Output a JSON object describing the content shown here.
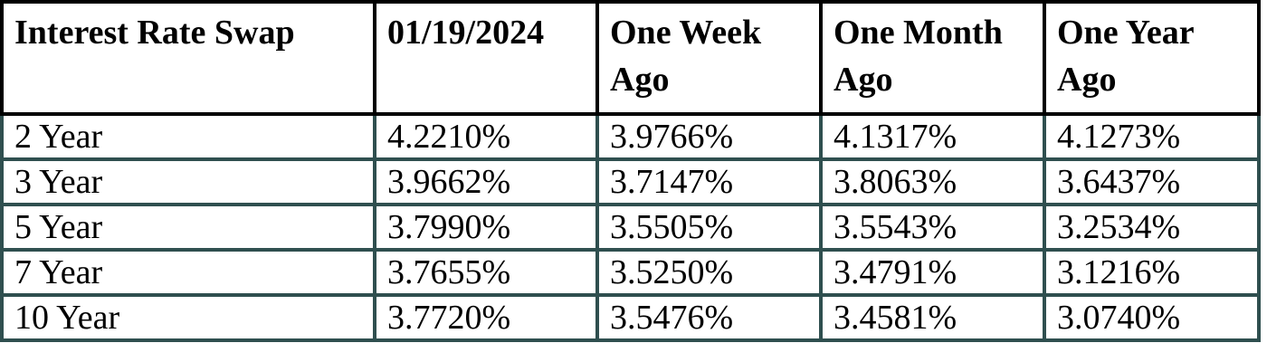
{
  "page": {
    "background": "#ffffff",
    "text_color": "#000000"
  },
  "table": {
    "columns": [
      "Interest Rate Swap",
      "01/19/2024",
      "One Week Ago",
      "One Month Ago",
      "One Year Ago"
    ],
    "rows": [
      {
        "label": "2 Year",
        "values": [
          "4.2210%",
          "3.9766%",
          "4.1317%",
          "4.1273%"
        ]
      },
      {
        "label": "3 Year",
        "values": [
          "3.9662%",
          "3.7147%",
          "3.8063%",
          "3.6437%"
        ]
      },
      {
        "label": "5 Year",
        "values": [
          "3.7990%",
          "3.5505%",
          "3.5543%",
          "3.2534%"
        ]
      },
      {
        "label": "7 Year",
        "values": [
          "3.7655%",
          "3.5250%",
          "3.4791%",
          "3.1216%"
        ]
      },
      {
        "label": "10 Year",
        "values": [
          "3.7720%",
          "3.5476%",
          "3.4581%",
          "3.0740%"
        ]
      }
    ],
    "colors": {
      "header_border": "#000000",
      "body_border": "#2F4F4F",
      "text": "#000000",
      "cell_background": "#ffffff"
    }
  },
  "chart_data": {
    "type": "table",
    "title": "Interest Rate Swap",
    "columns": [
      "Interest Rate Swap",
      "01/19/2024",
      "One Week Ago",
      "One Month Ago",
      "One Year Ago"
    ],
    "rows": [
      [
        "2 Year",
        "4.2210%",
        "3.9766%",
        "4.1317%",
        "4.1273%"
      ],
      [
        "3 Year",
        "3.9662%",
        "3.7147%",
        "3.8063%",
        "3.6437%"
      ],
      [
        "5 Year",
        "3.7990%",
        "3.5505%",
        "3.5543%",
        "3.2534%"
      ],
      [
        "7 Year",
        "3.7655%",
        "3.5250%",
        "3.4791%",
        "3.1216%"
      ],
      [
        "10 Year",
        "3.7720%",
        "3.5476%",
        "3.4581%",
        "3.0740%"
      ]
    ]
  }
}
